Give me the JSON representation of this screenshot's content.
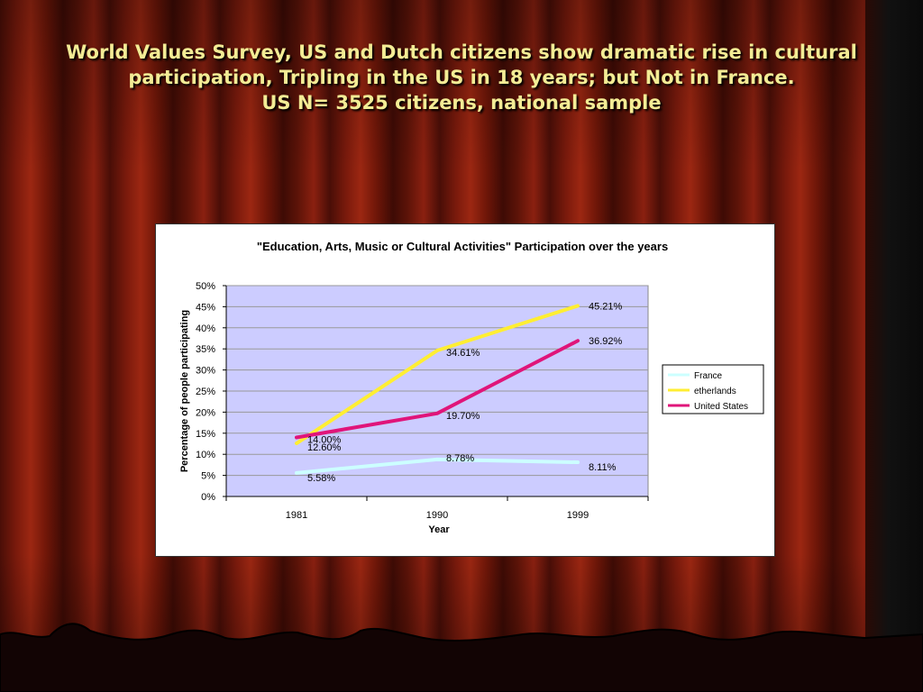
{
  "slide": {
    "title_lines": [
      "World Values Survey, US and Dutch citizens show dramatic rise in cultural",
      "participation, Tripling in the US in 18 years; but Not in France.",
      "US N= 3525  citizens, national sample"
    ]
  },
  "colors": {
    "plot_background": "#ccccff",
    "France": "#ccffff",
    "etherlands": "#ffee33",
    "United States": "#e0157a"
  },
  "chart_data": {
    "type": "line",
    "title": "\"Education, Arts, Music or Cultural Activities\" Participation over the years",
    "xlabel": "Year",
    "ylabel": "Percentage of people participating",
    "categories": [
      "1981",
      "1990",
      "1999"
    ],
    "ylim": [
      0,
      50
    ],
    "yticks": [
      "0%",
      "5%",
      "10%",
      "15%",
      "20%",
      "25%",
      "30%",
      "35%",
      "40%",
      "45%",
      "50%"
    ],
    "grid": true,
    "legend_position": "right",
    "series": [
      {
        "name": "France",
        "values": [
          5.58,
          8.78,
          8.11
        ],
        "labels": [
          "5.58%",
          "8.78%",
          "8.11%"
        ]
      },
      {
        "name": "etherlands",
        "values": [
          12.6,
          34.61,
          45.21
        ],
        "labels": [
          "12.60%",
          "34.61%",
          "45.21%"
        ]
      },
      {
        "name": "United States",
        "values": [
          14.0,
          19.7,
          36.92
        ],
        "labels": [
          "14.00%",
          "19.70%",
          "36.92%"
        ]
      }
    ]
  }
}
